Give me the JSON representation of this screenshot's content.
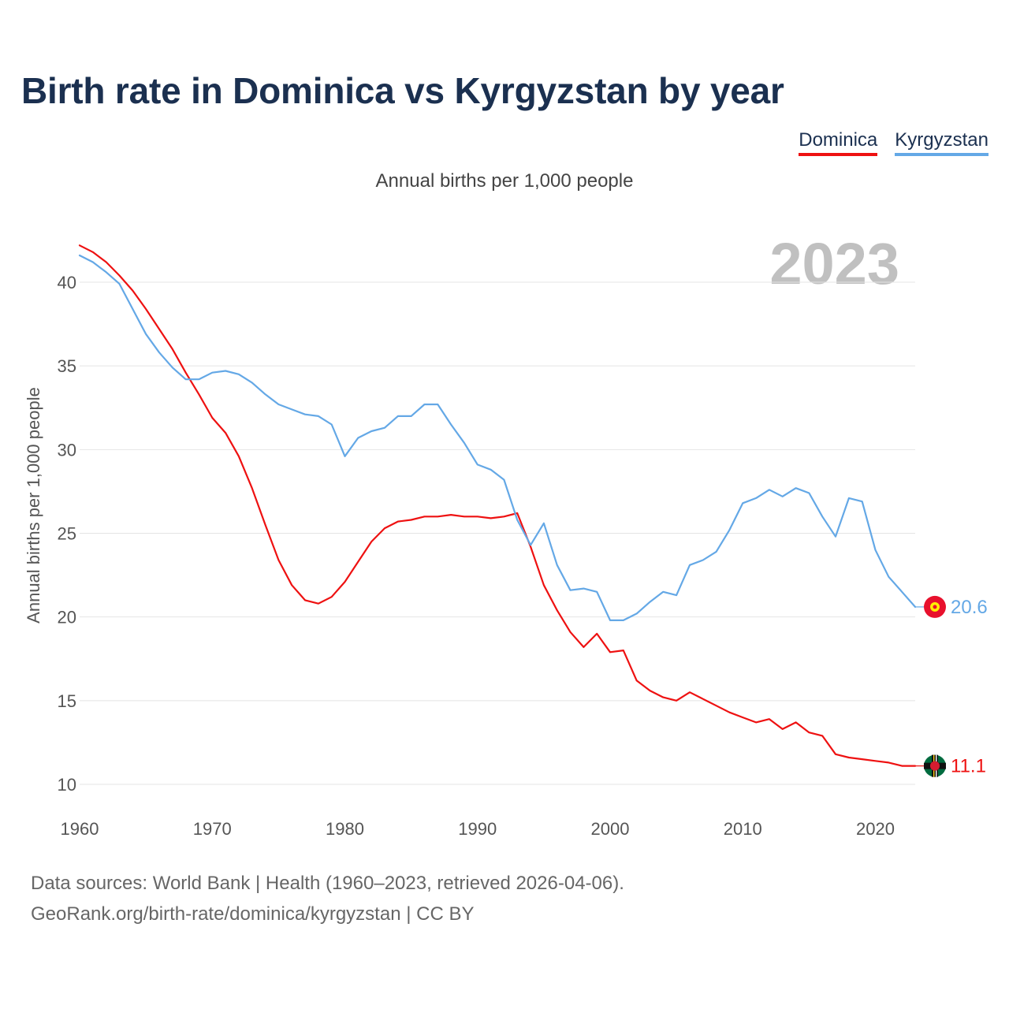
{
  "title": "Birth rate in Dominica vs Kyrgyzstan by year",
  "legend": [
    "Dominica",
    "Kyrgyzstan"
  ],
  "subtitle": "Annual births per 1,000 people",
  "footer": {
    "sources": "Data sources: World Bank | Health (1960–2023, retrieved 2026-04-06).",
    "url": "GeoRank.org/birth-rate/dominica/kyrgyzstan | CC BY"
  },
  "colors": {
    "dominica": "#ee1111",
    "kyrgyzstan": "#64a8e6",
    "year_watermark": "#c0c0c0"
  },
  "chart_data": {
    "type": "line",
    "title": "Birth rate in Dominica vs Kyrgyzstan by year",
    "ylabel": "Annual births per 1,000 people",
    "xlabel": "",
    "year_label": "2023",
    "xlim": [
      1960,
      2023
    ],
    "ylim": [
      10,
      42.5
    ],
    "yticks": [
      10,
      15,
      20,
      25,
      30,
      35,
      40
    ],
    "xticks": [
      1960,
      1970,
      1980,
      1990,
      2000,
      2010,
      2020
    ],
    "x_start": 1960,
    "series": [
      {
        "name": "Dominica",
        "color": "#ee1111",
        "end_label": "11.1",
        "values": [
          42.2,
          41.8,
          41.2,
          40.4,
          39.5,
          38.4,
          37.2,
          36.0,
          34.6,
          33.3,
          31.9,
          31.0,
          29.6,
          27.7,
          25.5,
          23.4,
          21.9,
          21.0,
          20.8,
          21.2,
          22.1,
          23.3,
          24.5,
          25.3,
          25.7,
          25.8,
          26.0,
          26.0,
          26.1,
          26.0,
          26.0,
          25.9,
          26.0,
          26.2,
          24.2,
          21.9,
          20.4,
          19.1,
          18.2,
          19.0,
          17.9,
          18.0,
          16.2,
          15.6,
          15.2,
          15.0,
          15.5,
          15.1,
          14.7,
          14.3,
          14.0,
          13.7,
          13.9,
          13.3,
          13.7,
          13.1,
          12.9,
          11.8,
          11.6,
          11.5,
          11.4,
          11.3,
          11.1,
          11.1
        ]
      },
      {
        "name": "Kyrgyzstan",
        "color": "#64a8e6",
        "end_label": "20.6",
        "values": [
          41.6,
          41.2,
          40.6,
          39.9,
          38.4,
          36.9,
          35.8,
          34.9,
          34.2,
          34.2,
          34.6,
          34.7,
          34.5,
          34.0,
          33.3,
          32.7,
          32.4,
          32.1,
          32.0,
          31.5,
          29.6,
          30.7,
          31.1,
          31.3,
          32.0,
          32.0,
          32.7,
          32.7,
          31.5,
          30.4,
          29.1,
          28.8,
          28.2,
          25.8,
          24.3,
          25.6,
          23.1,
          21.6,
          21.7,
          21.5,
          19.8,
          19.8,
          20.2,
          20.9,
          21.5,
          21.3,
          23.1,
          23.4,
          23.9,
          25.2,
          26.8,
          27.1,
          27.6,
          27.2,
          27.7,
          27.4,
          26.0,
          24.8,
          27.1,
          26.9,
          24.0,
          22.4,
          21.5,
          20.6
        ]
      }
    ]
  }
}
